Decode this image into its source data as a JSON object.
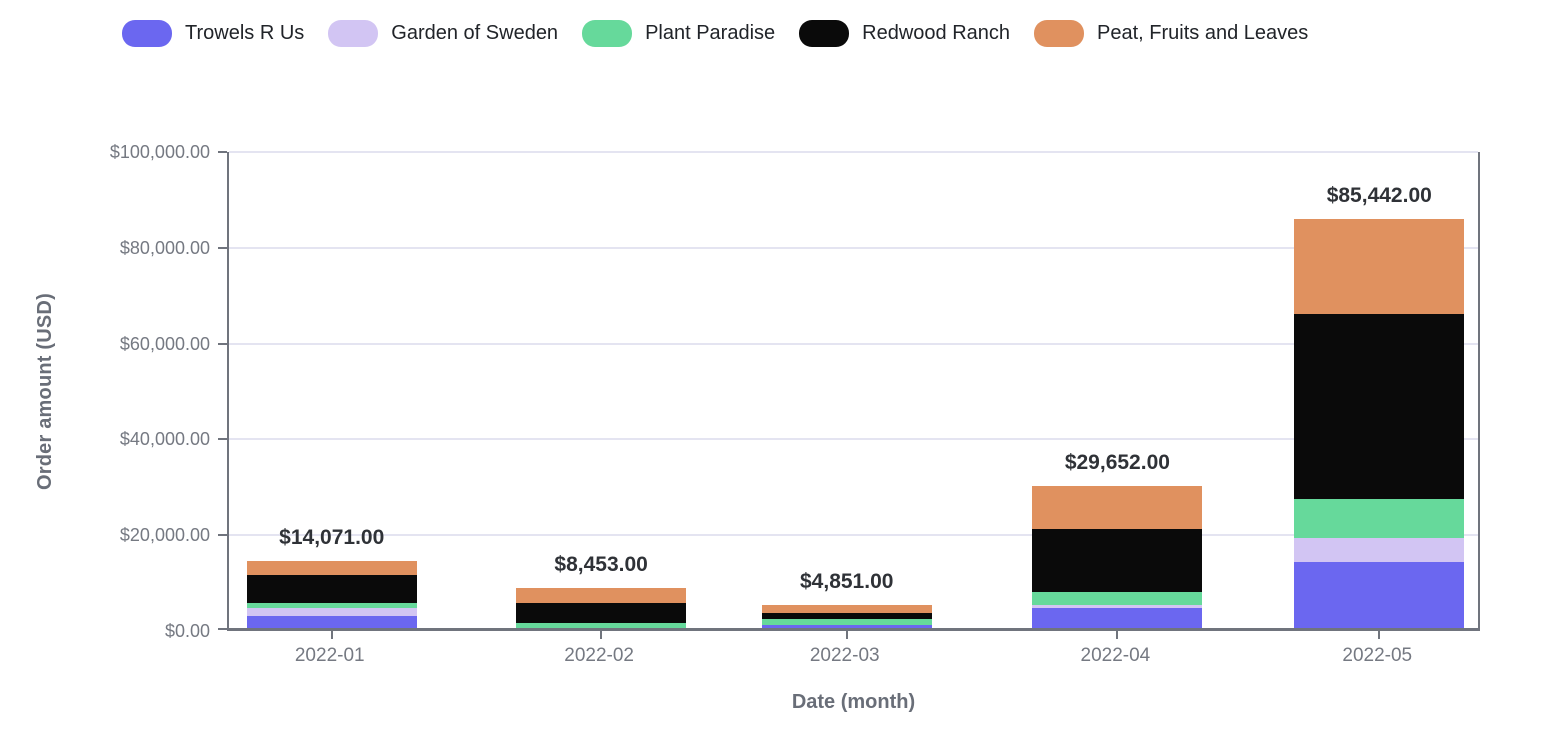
{
  "chart_data": {
    "type": "bar",
    "stacked": true,
    "title": "",
    "xlabel": "Date (month)",
    "ylabel": "Order amount (USD)",
    "ylim": [
      0,
      100000
    ],
    "grid": true,
    "legend_position": "top",
    "categories": [
      "2022-01",
      "2022-02",
      "2022-03",
      "2022-04",
      "2022-05"
    ],
    "series": [
      {
        "name": "Trowels R Us",
        "color": "#6B67F0",
        "values": [
          2600,
          0,
          550,
          4100,
          13780
        ]
      },
      {
        "name": "Garden of Sweden",
        "color": "#D2C5F3",
        "values": [
          1550,
          0,
          0,
          630,
          5010
        ]
      },
      {
        "name": "Plant Paradise",
        "color": "#66D99B",
        "values": [
          1100,
          1050,
          1250,
          2870,
          8140
        ]
      },
      {
        "name": "Redwood Ranch",
        "color": "#0A0A0A",
        "values": [
          5900,
          4100,
          1350,
          13090,
          38600
        ]
      },
      {
        "name": "Peat, Fruits and Leaves",
        "color": "#E0915F",
        "values": [
          2921,
          3303,
          1701,
          8962,
          19912
        ]
      }
    ],
    "totals": [
      14071,
      8453,
      4851,
      29652,
      85442
    ],
    "total_labels": [
      "$14,071.00",
      "$8,453.00",
      "$4,851.00",
      "$29,652.00",
      "$85,442.00"
    ],
    "y_ticks": [
      {
        "value": 0,
        "label": "$0.00"
      },
      {
        "value": 20000,
        "label": "$20,000.00"
      },
      {
        "value": 40000,
        "label": "$40,000.00"
      },
      {
        "value": 60000,
        "label": "$60,000.00"
      },
      {
        "value": 80000,
        "label": "$80,000.00"
      },
      {
        "value": 100000,
        "label": "$100,000.00"
      }
    ]
  },
  "colors": {
    "axis": "#70747D",
    "gridline": "#E4E4F1",
    "tick_label": "#757982",
    "axis_title": "#696E78",
    "legend_text": "#212429",
    "total_label": "#2F3237",
    "background": "#ffffff"
  }
}
